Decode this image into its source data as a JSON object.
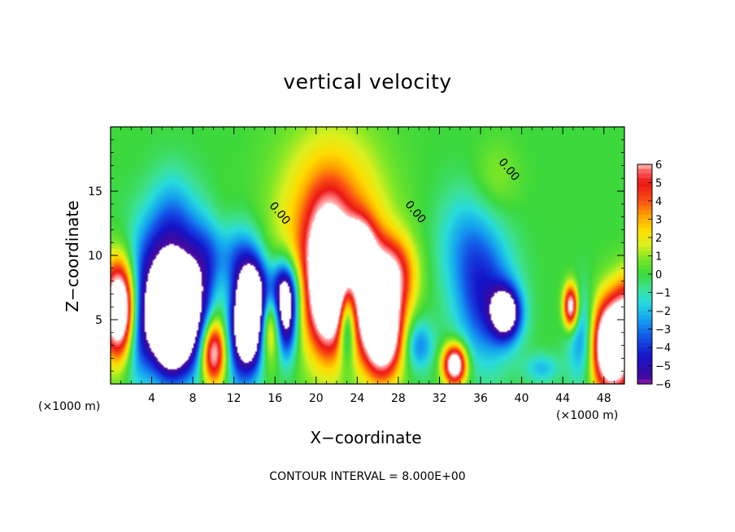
{
  "chart_data": {
    "type": "heatmap",
    "title": "vertical velocity",
    "xlabel": "X−coordinate",
    "ylabel": "Z−coordinate",
    "x_unit_left": "(×1000 m)",
    "x_unit_right": "(×1000 m)",
    "xlim": [
      0,
      50
    ],
    "ylim": [
      0,
      20
    ],
    "xticks": [
      4,
      8,
      12,
      16,
      20,
      24,
      28,
      32,
      36,
      40,
      44,
      48
    ],
    "xtick_labels": [
      "4",
      "8",
      "12",
      "16",
      "20",
      "24",
      "28",
      "32",
      "36",
      "40",
      "44",
      "48"
    ],
    "yticks": [
      5,
      10,
      15
    ],
    "ytick_labels": [
      "5",
      "10",
      "15"
    ],
    "contour_labels": [
      {
        "text": "0.00",
        "x": 16.2,
        "z": 13.1
      },
      {
        "text": "0.00",
        "x": 29.4,
        "z": 13.2
      },
      {
        "text": "0.00",
        "x": 38.5,
        "z": 16.5
      }
    ],
    "colorbar": {
      "min": -6,
      "max": 6,
      "ticks": [
        6,
        5,
        4,
        3,
        2,
        1,
        0,
        -1,
        -2,
        -3,
        -4,
        -5,
        -6
      ],
      "tick_labels": [
        "6",
        "5",
        "4",
        "3",
        "2",
        "1",
        "0",
        "−1",
        "−2",
        "−3",
        "−4",
        "−5",
        "−6"
      ]
    },
    "blobs": [
      {
        "x": 1.0,
        "z": 5.8,
        "sx": 1.2,
        "sz": 2.6,
        "a": 12
      },
      {
        "x": 2.5,
        "z": 4.5,
        "sx": 1.0,
        "sz": 3.0,
        "a": -4
      },
      {
        "x": 4.2,
        "z": 6.5,
        "sx": 1.8,
        "sz": 3.5,
        "a": -3
      },
      {
        "x": 6.0,
        "z": 4.5,
        "sx": 1.4,
        "sz": 2.6,
        "a": -12
      },
      {
        "x": 6.5,
        "z": 9.5,
        "sx": 2.8,
        "sz": 3.0,
        "a": -4
      },
      {
        "x": 6.0,
        "z": 13.5,
        "sx": 1.5,
        "sz": 2.5,
        "a": -1.5
      },
      {
        "x": 8.5,
        "z": 5.0,
        "sx": 1.2,
        "sz": 3.0,
        "a": -4
      },
      {
        "x": 10.0,
        "z": 2.5,
        "sx": 0.9,
        "sz": 1.8,
        "a": 8
      },
      {
        "x": 11.0,
        "z": 8.0,
        "sx": 1.0,
        "sz": 3.5,
        "a": 2
      },
      {
        "x": 12.5,
        "z": 4.0,
        "sx": 1.2,
        "sz": 3.0,
        "a": -5
      },
      {
        "x": 13.8,
        "z": 5.5,
        "sx": 1.0,
        "sz": 2.6,
        "a": -11
      },
      {
        "x": 11.5,
        "z": 9.8,
        "sx": 2.0,
        "sz": 2.0,
        "a": -3
      },
      {
        "x": 15.5,
        "z": 4.5,
        "sx": 0.9,
        "sz": 2.0,
        "a": 5
      },
      {
        "x": 17.0,
        "z": 5.5,
        "sx": 0.8,
        "sz": 2.4,
        "a": -9
      },
      {
        "x": 16.5,
        "z": 7.5,
        "sx": 1.5,
        "sz": 1.5,
        "a": -3
      },
      {
        "x": 21.5,
        "z": 11.0,
        "sx": 3.5,
        "sz": 5.5,
        "a": 5
      },
      {
        "x": 21.2,
        "z": 8.0,
        "sx": 1.3,
        "sz": 3.5,
        "a": 10
      },
      {
        "x": 24.2,
        "z": 10.5,
        "sx": 1.0,
        "sz": 1.5,
        "a": 6
      },
      {
        "x": 26.5,
        "z": 4.0,
        "sx": 1.3,
        "sz": 2.4,
        "a": 10
      },
      {
        "x": 25.0,
        "z": 7.0,
        "sx": 1.6,
        "sz": 3.0,
        "a": 4
      },
      {
        "x": 23.0,
        "z": 5.0,
        "sx": 0.6,
        "sz": 2.2,
        "a": -6
      },
      {
        "x": 27.5,
        "z": 8.5,
        "sx": 1.5,
        "sz": 2.0,
        "a": 5
      },
      {
        "x": 30.0,
        "z": 3.0,
        "sx": 1.0,
        "sz": 1.4,
        "a": -3
      },
      {
        "x": 33.5,
        "z": 1.5,
        "sx": 0.8,
        "sz": 1.1,
        "a": 9
      },
      {
        "x": 36.5,
        "z": 6.5,
        "sx": 2.0,
        "sz": 3.5,
        "a": -4
      },
      {
        "x": 38.5,
        "z": 5.5,
        "sx": 1.0,
        "sz": 1.4,
        "a": -7
      },
      {
        "x": 34.5,
        "z": 11.0,
        "sx": 2.0,
        "sz": 3.0,
        "a": -2
      },
      {
        "x": 37.5,
        "z": 16.0,
        "sx": 1.6,
        "sz": 2.0,
        "a": 1
      },
      {
        "x": 44.8,
        "z": 6.0,
        "sx": 0.5,
        "sz": 1.2,
        "a": 8
      },
      {
        "x": 46.0,
        "z": 3.5,
        "sx": 1.0,
        "sz": 2.5,
        "a": -4
      },
      {
        "x": 48.8,
        "z": 3.0,
        "sx": 1.5,
        "sz": 2.5,
        "a": 12
      },
      {
        "x": 50.5,
        "z": 6.0,
        "sx": 1.0,
        "sz": 2.0,
        "a": 4
      },
      {
        "x": 42.0,
        "z": 1.2,
        "sx": 1.2,
        "sz": 0.8,
        "a": -2
      }
    ]
  },
  "footer": {
    "contour_interval": "CONTOUR INTERVAL = 8.000E+00"
  }
}
